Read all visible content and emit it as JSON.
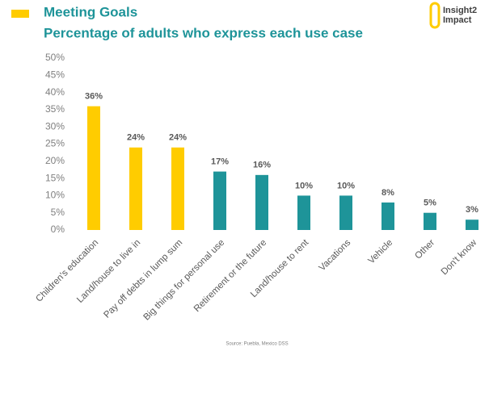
{
  "chart_data": {
    "type": "bar",
    "title": "Meeting Goals",
    "subtitle": "Percentage of adults who express each use case",
    "logo": [
      "Insight2",
      "Impact"
    ],
    "source": "Source: Puebla, Mexico DSS",
    "categories": [
      "Children's education",
      "Land/house to live in",
      "Pay off debts in lump sum",
      "Big things for personal use",
      "Retirement or the future",
      "Land/house to rent",
      "Vacations",
      "Vehicle",
      "Other",
      "Don't know"
    ],
    "values": [
      36,
      24,
      24,
      17,
      16,
      10,
      10,
      8,
      5,
      3
    ],
    "value_labels": [
      "36%",
      "24%",
      "24%",
      "17%",
      "16%",
      "10%",
      "10%",
      "8%",
      "5%",
      "3%"
    ],
    "colors": [
      "#ffcc00",
      "#ffcc00",
      "#ffcc00",
      "#1e9499",
      "#1e9499",
      "#1e9499",
      "#1e9499",
      "#1e9499",
      "#1e9499",
      "#1e9499"
    ],
    "ylim": [
      0,
      50
    ],
    "yticks": [
      {
        "value": 0,
        "label": "0%"
      },
      {
        "value": 5,
        "label": "5%"
      },
      {
        "value": 10,
        "label": "10%"
      },
      {
        "value": 15,
        "label": "15%"
      },
      {
        "value": 20,
        "label": "20%"
      },
      {
        "value": 25,
        "label": "25%"
      },
      {
        "value": 30,
        "label": "30%"
      },
      {
        "value": 35,
        "label": "35%"
      },
      {
        "value": 40,
        "label": "40%"
      },
      {
        "value": 45,
        "label": "45%"
      },
      {
        "value": 50,
        "label": "50%"
      }
    ],
    "grid": false
  }
}
